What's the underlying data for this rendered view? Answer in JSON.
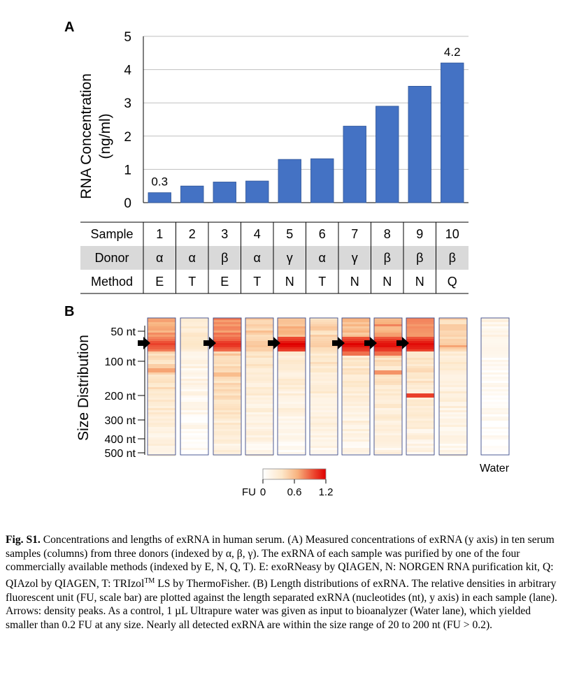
{
  "panel_a": {
    "label": "A",
    "ylabel_line1": "RNA Concentration",
    "ylabel_line2": "(ng/ml)",
    "y_ticks": [
      "0",
      "1",
      "2",
      "3",
      "4",
      "5"
    ]
  },
  "panel_b": {
    "label": "B",
    "ylabel": "Size Distribution",
    "y_ticks": [
      "50 nt",
      "100 nt",
      "200 nt",
      "300 nt",
      "400 nt",
      "500 nt"
    ],
    "water_label": "Water",
    "colorbar_label": "FU",
    "colorbar_ticks": [
      "0",
      "0.6",
      "1.2"
    ]
  },
  "table": {
    "row_headers": [
      "Sample",
      "Donor",
      "Method"
    ],
    "samples": [
      "1",
      "2",
      "3",
      "4",
      "5",
      "6",
      "7",
      "8",
      "9",
      "10"
    ],
    "donors": [
      "α",
      "α",
      "β",
      "α",
      "γ",
      "α",
      "γ",
      "β",
      "β",
      "β"
    ],
    "methods": [
      "E",
      "T",
      "E",
      "T",
      "N",
      "T",
      "N",
      "N",
      "N",
      "Q"
    ],
    "donor_row_bg": "#d9d9d9"
  },
  "chart_data": [
    {
      "type": "bar",
      "categories": [
        "1",
        "2",
        "3",
        "4",
        "5",
        "6",
        "7",
        "8",
        "9",
        "10"
      ],
      "values": [
        0.3,
        0.5,
        0.62,
        0.65,
        1.3,
        1.32,
        2.3,
        2.9,
        3.5,
        4.2
      ],
      "data_labels": [
        "0.3",
        "",
        "",
        "",
        "",
        "",
        "",
        "",
        "",
        "4.2"
      ],
      "ylabel": "RNA Concentration (ng/ml)",
      "ylim": [
        0,
        5
      ],
      "grid": true,
      "bar_color": "#4472c4"
    },
    {
      "type": "heatmap",
      "lanes": [
        "1",
        "2",
        "3",
        "4",
        "5",
        "6",
        "7",
        "8",
        "9",
        "10",
        "Water"
      ],
      "peak_arrow_lanes": [
        "1",
        "3",
        "5",
        "7",
        "8",
        "9"
      ],
      "ylabel": "Size Distribution",
      "y_tick_labels": [
        "50 nt",
        "100 nt",
        "200 nt",
        "300 nt",
        "400 nt",
        "500 nt"
      ],
      "color_scale": {
        "label": "FU",
        "min": 0,
        "max": 1.2,
        "ticks": [
          0,
          0.6,
          1.2
        ],
        "colors": [
          "#ffffff",
          "#fbe0c0",
          "#f5a06a",
          "#e83a2a",
          "#e00000"
        ]
      }
    }
  ],
  "caption": {
    "fig_label": "Fig. S1.",
    "text": " Concentrations and lengths of exRNA in human serum. (A) Measured concentrations of exRNA (y axis) in ten serum samples (columns) from three donors (indexed by α, β, γ). The exRNA of each sample was purified by one of the four commercially available methods (indexed by E, N, Q, T). E: exoRNeasy by QIAGEN, N: NORGEN RNA purification kit, Q: QIAzol by QIAGEN, T: TRIzol",
    "tm": "TM",
    "text2": " LS by ThermoFisher. (B) Length distributions of exRNA. The relative densities in arbitrary fluorescent unit (FU, scale bar) are plotted against the length separated exRNA (nucleotides (nt), y axis) in each sample (lane). Arrows: density peaks. As a control, 1 µL Ultrapure water was given as input to bioanalyzer (Water lane), which yielded smaller than 0.2 FU at any size. Nearly all detected exRNA are within the size range of 20 to 200 nt (FU > 0.2)."
  }
}
